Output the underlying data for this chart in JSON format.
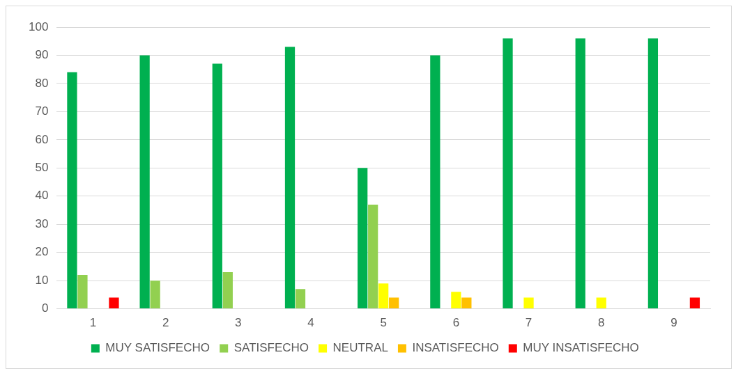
{
  "chart_data": {
    "type": "bar",
    "categories": [
      "1",
      "2",
      "3",
      "4",
      "5",
      "6",
      "7",
      "8",
      "9"
    ],
    "series": [
      {
        "name": "MUY SATISFECHO",
        "color": "#00b050",
        "values": [
          84,
          90,
          87,
          93,
          50,
          90,
          96,
          96,
          96
        ]
      },
      {
        "name": "SATISFECHO",
        "color": "#92d050",
        "values": [
          12,
          10,
          13,
          7,
          37,
          0,
          0,
          0,
          0
        ]
      },
      {
        "name": "NEUTRAL",
        "color": "#ffff00",
        "values": [
          0,
          0,
          0,
          0,
          9,
          6,
          4,
          4,
          0
        ]
      },
      {
        "name": "INSATISFECHO",
        "color": "#ffc000",
        "values": [
          0,
          0,
          0,
          0,
          4,
          4,
          0,
          0,
          0
        ]
      },
      {
        "name": "MUY INSATISFECHO",
        "color": "#ff0000",
        "values": [
          4,
          0,
          0,
          0,
          0,
          0,
          0,
          0,
          4
        ]
      }
    ],
    "ylim": [
      0,
      100
    ],
    "yticks": [
      0,
      10,
      20,
      30,
      40,
      50,
      60,
      70,
      80,
      90,
      100
    ],
    "grid": "y",
    "legend": "bottom"
  }
}
